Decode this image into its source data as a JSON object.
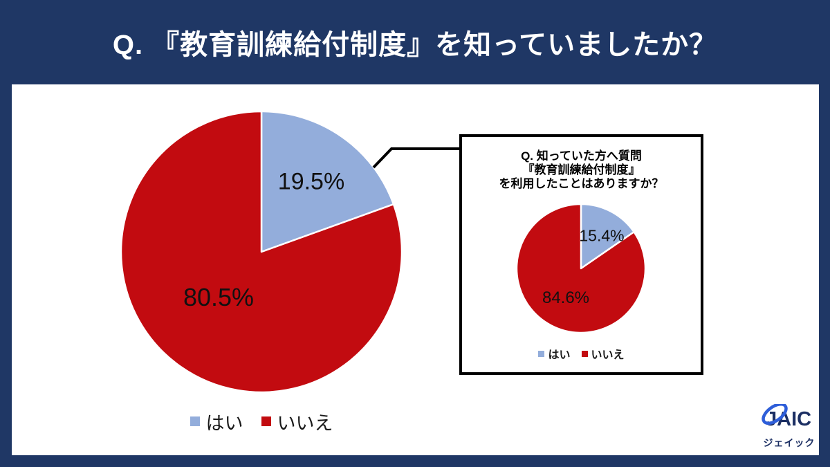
{
  "page": {
    "title": "Q. 『教育訓練給付制度』を知っていましたか？",
    "background_color": "#1F3765",
    "card_color": "#FFFFFF"
  },
  "chart_data": [
    {
      "type": "pie",
      "name": "awareness-pie",
      "title": "Q. 『教育訓練給付制度』を知っていましたか？",
      "categories": [
        "はい",
        "いいえ"
      ],
      "values": [
        19.5,
        80.5
      ],
      "labels": [
        "19.5%",
        "80.5%"
      ],
      "colors": [
        "#93ADDB",
        "#C20B10"
      ],
      "start_angle": "top",
      "direction": "clockwise",
      "legend_position": "bottom"
    },
    {
      "type": "pie",
      "name": "usage-among-aware-pie",
      "title": "Q. 知っていた方へ質問『教育訓練給付制度』を利用したことはありますか？",
      "categories": [
        "はい",
        "いいえ"
      ],
      "values": [
        15.4,
        84.6
      ],
      "labels": [
        "15.4%",
        "84.6%"
      ],
      "colors": [
        "#93ADDB",
        "#C20B10"
      ],
      "start_angle": "top",
      "direction": "clockwise",
      "legend_position": "bottom"
    }
  ],
  "inset": {
    "title_lines": [
      "Q. 知っていた方へ質問",
      "『教育訓練給付制度』",
      "を利用したことはありますか？"
    ]
  },
  "logo": {
    "text": "JAIC",
    "subtext": "ジェイック",
    "navy": "#1C2F63",
    "blue": "#2E5ED9"
  }
}
